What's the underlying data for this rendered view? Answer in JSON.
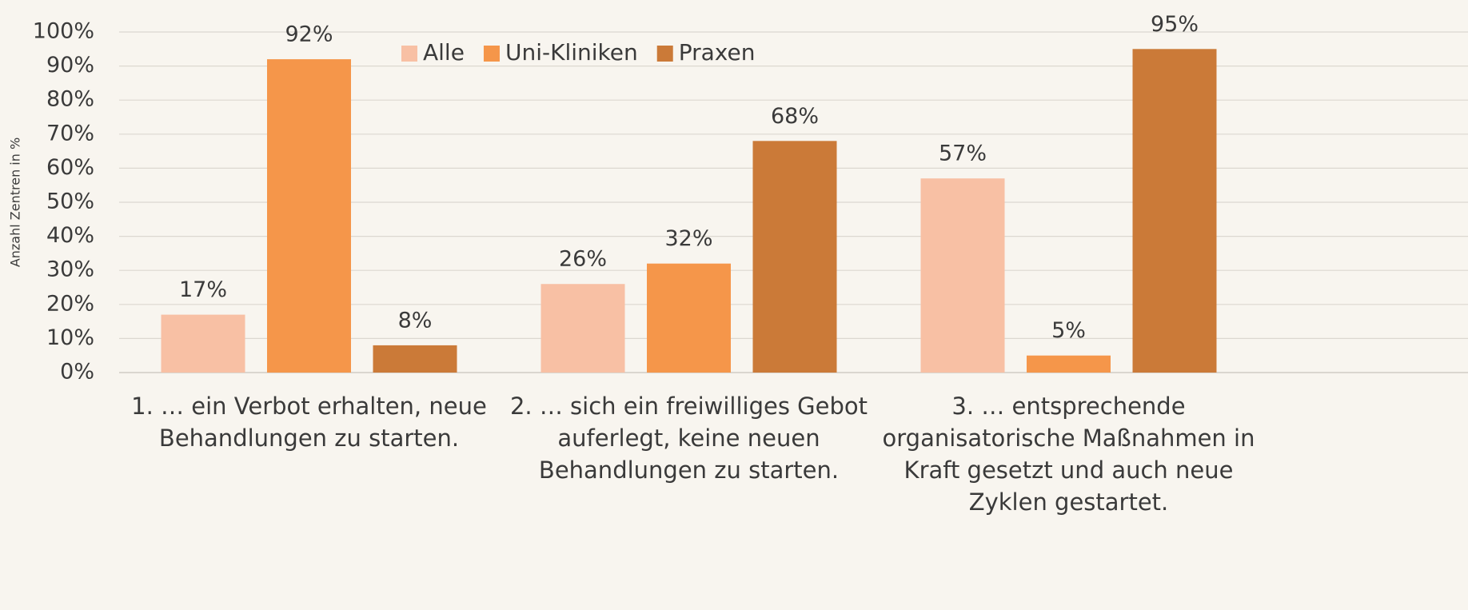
{
  "chart_data": {
    "type": "bar",
    "y_label": "Anzahl Zentren in %",
    "categories": [
      "1. … ein Verbot erhalten, neue Behandlungen zu starten.",
      "2. … sich ein freiwilliges Gebot auferlegt, keine neuen Behandlungen zu starten.",
      "3. … entsprechende organisatorische Maßnahmen in Kraft gesetzt und auch neue Zyklen gestartet."
    ],
    "series": [
      {
        "name": "Alle",
        "color": "#f8c0a4",
        "values": [
          17,
          26,
          57
        ],
        "value_labels": [
          "17%",
          "26%",
          "57%"
        ]
      },
      {
        "name": "Uni-Kliniken",
        "color": "#f5964a",
        "values": [
          92,
          32,
          5
        ],
        "value_labels": [
          "92%",
          "32%",
          "5%"
        ]
      },
      {
        "name": "Praxen",
        "color": "#cb7a38",
        "values": [
          8,
          68,
          95
        ],
        "value_labels": [
          "8%",
          "68%",
          "95%"
        ]
      }
    ],
    "ylim": [
      0,
      100
    ],
    "yticks": [
      {
        "value": 0,
        "label": "0%"
      },
      {
        "value": 10,
        "label": "10%"
      },
      {
        "value": 20,
        "label": "20%"
      },
      {
        "value": 30,
        "label": "30%"
      },
      {
        "value": 40,
        "label": "40%"
      },
      {
        "value": 50,
        "label": "50%"
      },
      {
        "value": 60,
        "label": "60%"
      },
      {
        "value": 70,
        "label": "70%"
      },
      {
        "value": 80,
        "label": "80%"
      },
      {
        "value": 90,
        "label": "90%"
      },
      {
        "value": 100,
        "label": "100%"
      }
    ],
    "grid": true,
    "legend": "top"
  }
}
